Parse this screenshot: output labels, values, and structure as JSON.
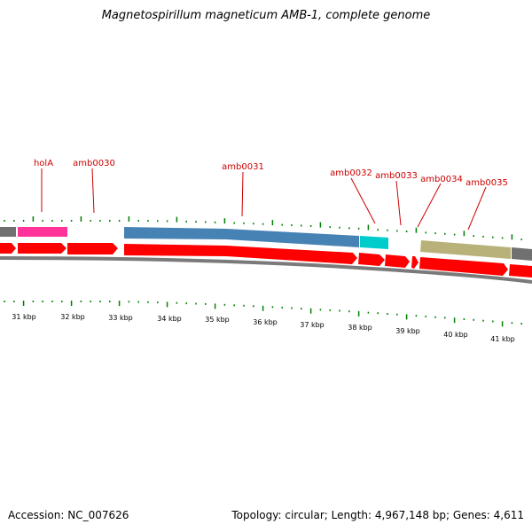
{
  "title": "Magnetospirillum magneticum AMB-1, complete genome",
  "footer": {
    "accession": "Accession: NC_007626",
    "summary": "Topology: circular; Length: 4,967,148 bp; Genes: 4,611"
  },
  "colors": {
    "cds": "#ff0000",
    "label": "#cc0000",
    "tick": "#008000",
    "backbone": "#808080",
    "gene_holA": "#ff3399",
    "gene_amb0031": "#4682b4",
    "gene_amb0032": "#00cccc",
    "gene_amb0035": "#b8b27a",
    "gene_grey": "#707070"
  },
  "gene_labels": [
    "holA",
    "amb0030",
    "amb0031",
    "amb0032",
    "amb0033",
    "amb0034",
    "amb0035"
  ],
  "kbp_labels": [
    "31 kbp",
    "32 kbp",
    "33 kbp",
    "34 kbp",
    "35 kbp",
    "36 kbp",
    "37 kbp",
    "38 kbp",
    "39 kbp",
    "40 kbp",
    "41 kbp"
  ]
}
